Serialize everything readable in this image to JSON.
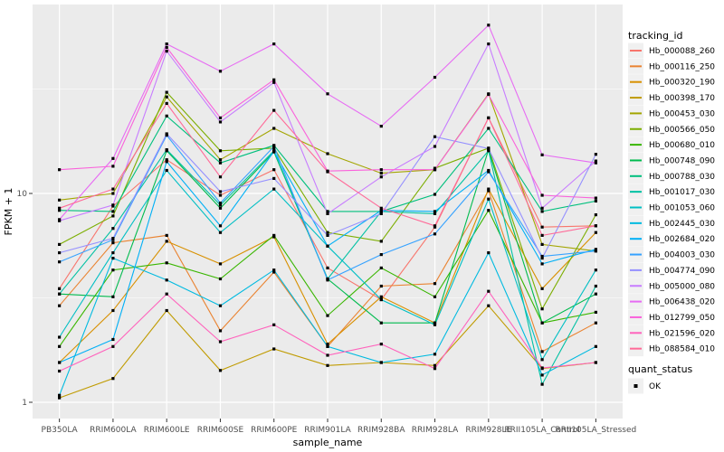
{
  "chart_data": {
    "type": "line",
    "title": "",
    "xlabel": "sample_name",
    "ylabel": "FPKM + 1",
    "y_scale": "log10",
    "yticks": [
      1,
      10
    ],
    "ytick_labels": [
      "1",
      "10"
    ],
    "y_minor_ticks": [
      3.162,
      31.62
    ],
    "ylim": [
      0.83,
      80
    ],
    "grid": "on",
    "panel_bg": "#ebebeb",
    "grid_color": "#ffffff",
    "marker": {
      "shape": "filled-square",
      "color": "#000000"
    },
    "legend_position": "right",
    "legend_title": "tracking_id",
    "shape_legend": {
      "title": "quant_status",
      "items": [
        {
          "label": "OK",
          "shape": "filled-square",
          "color": "#000000"
        }
      ]
    },
    "categories": [
      "PB350LA",
      "RRIM600LA",
      "RRIM600LE",
      "RRIM600SE",
      "RRIM600PE",
      "RRIM901LA",
      "RRIM928BA",
      "RRIM928LA",
      "RRIM928LE",
      "RRII105LA_Control",
      "RRII105LA_Stressed"
    ],
    "series": [
      {
        "name": "Hb_000088_260",
        "color": "#F8766D",
        "values": [
          3.5,
          8.7,
          14.5,
          9.8,
          13.0,
          4.4,
          3.1,
          6.9,
          23.0,
          6.9,
          7.0
        ]
      },
      {
        "name": "Hb_000116_250",
        "color": "#EA8331",
        "values": [
          2.9,
          5.8,
          6.3,
          2.2,
          4.2,
          1.85,
          3.6,
          3.7,
          10.3,
          1.75,
          2.4
        ]
      },
      {
        "name": "Hb_000320_190",
        "color": "#D89000",
        "values": [
          1.55,
          2.75,
          5.9,
          4.6,
          6.2,
          1.9,
          3.2,
          2.4,
          10.5,
          3.5,
          6.5
        ]
      },
      {
        "name": "Hb_000398_170",
        "color": "#C09B00",
        "values": [
          1.05,
          1.3,
          2.75,
          1.42,
          1.8,
          1.5,
          1.55,
          1.5,
          2.9,
          1.45,
          1.55
        ]
      },
      {
        "name": "Hb_000453_030",
        "color": "#A3A500",
        "values": [
          9.3,
          10.0,
          29.0,
          14.5,
          20.5,
          15.5,
          12.5,
          13.0,
          30.0,
          5.7,
          5.3
        ]
      },
      {
        "name": "Hb_000566_050",
        "color": "#7CAE00",
        "values": [
          5.7,
          7.8,
          30.5,
          16.0,
          16.5,
          6.5,
          5.9,
          13.2,
          16.5,
          2.8,
          7.9
        ]
      },
      {
        "name": "Hb_000680_010",
        "color": "#39B600",
        "values": [
          1.85,
          4.3,
          4.65,
          3.9,
          6.3,
          2.6,
          4.4,
          3.2,
          8.3,
          2.4,
          2.7
        ]
      },
      {
        "name": "Hb_000748_090",
        "color": "#00BB4E",
        "values": [
          3.3,
          3.2,
          16.0,
          8.5,
          15.8,
          3.9,
          2.4,
          2.4,
          16.2,
          2.4,
          3.3
        ]
      },
      {
        "name": "Hb_000788_030",
        "color": "#00BF7D",
        "values": [
          8.3,
          8.2,
          23.5,
          14.0,
          17.0,
          8.2,
          8.2,
          9.9,
          20.5,
          8.2,
          9.2
        ]
      },
      {
        "name": "Hb_001017_030",
        "color": "#00C1A3",
        "values": [
          3.3,
          6.8,
          16.2,
          8.8,
          16.0,
          3.9,
          8.2,
          8.0,
          16.0,
          1.22,
          3.6
        ]
      },
      {
        "name": "Hb_001053_060",
        "color": "#00BFC4",
        "values": [
          2.05,
          5.2,
          12.9,
          6.5,
          10.5,
          5.6,
          3.1,
          2.35,
          9.4,
          1.6,
          4.3
        ]
      },
      {
        "name": "Hb_002445_030",
        "color": "#00BAE0",
        "values": [
          1.08,
          4.9,
          3.85,
          2.9,
          4.3,
          1.85,
          1.55,
          1.7,
          5.2,
          1.35,
          1.85
        ]
      },
      {
        "name": "Hb_002684_020",
        "color": "#00B0F6",
        "values": [
          1.55,
          2.0,
          14.2,
          7.0,
          15.9,
          5.6,
          8.3,
          8.2,
          12.9,
          4.6,
          5.4
        ]
      },
      {
        "name": "Hb_004003_030",
        "color": "#35A2FF",
        "values": [
          4.7,
          6.0,
          19.0,
          9.0,
          16.8,
          3.85,
          5.1,
          6.4,
          12.7,
          5.0,
          5.3
        ]
      },
      {
        "name": "Hb_004774_090",
        "color": "#9590FF",
        "values": [
          5.2,
          6.1,
          19.3,
          10.2,
          11.8,
          6.3,
          8.0,
          18.7,
          16.4,
          4.9,
          15.4
        ]
      },
      {
        "name": "Hb_005000_080",
        "color": "#C77CFF",
        "values": [
          7.4,
          8.8,
          48.0,
          22.0,
          34.0,
          8.0,
          12.0,
          16.8,
          52.0,
          8.5,
          14.3
        ]
      },
      {
        "name": "Hb_006438_020",
        "color": "#E76BF3",
        "values": [
          7.5,
          14.7,
          52.0,
          38.5,
          52.0,
          30.0,
          21.0,
          36.0,
          64.0,
          15.3,
          14.0
        ]
      },
      {
        "name": "Hb_012799_050",
        "color": "#FA62DB",
        "values": [
          13.0,
          13.5,
          50.0,
          23.0,
          35.0,
          12.8,
          13.0,
          13.0,
          29.8,
          9.8,
          9.5
        ]
      },
      {
        "name": "Hb_021596_020",
        "color": "#FF62BC",
        "values": [
          1.41,
          1.85,
          3.3,
          1.95,
          2.35,
          1.68,
          1.9,
          1.45,
          3.4,
          1.46,
          1.55
        ]
      },
      {
        "name": "Hb_088584_010",
        "color": "#FF6A98",
        "values": [
          8.5,
          10.5,
          27.0,
          12.0,
          25.0,
          12.7,
          8.5,
          7.0,
          23.0,
          6.3,
          7.0
        ]
      }
    ]
  }
}
